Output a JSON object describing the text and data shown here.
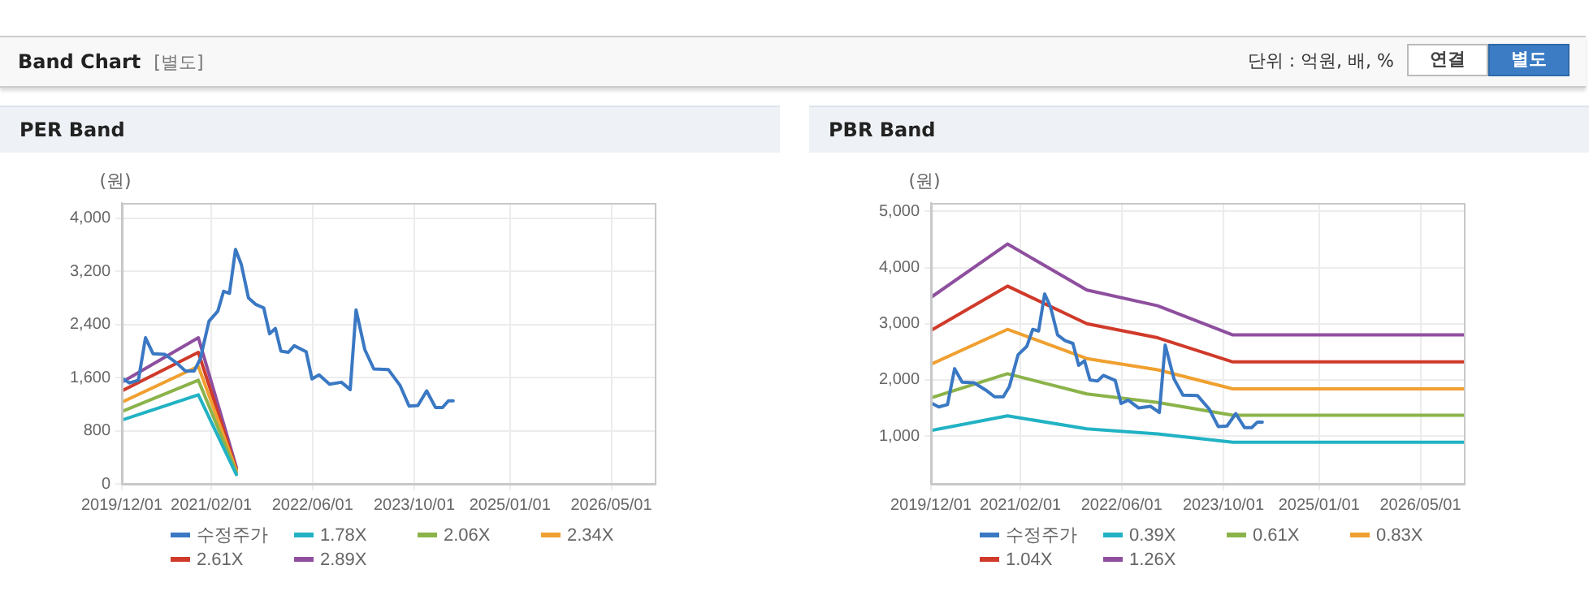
{
  "chart_data": [
    {
      "type": "other",
      "title": "Band Chart",
      "annotations": [
        "[별도]",
        "단위 : 억원, 배, %",
        "연결",
        "별도"
      ]
    },
    {
      "type": "line",
      "title": "PER Band",
      "ylabel": "(원)",
      "xlim": [
        "2019-12-01",
        "2026-11-25"
      ],
      "xticks": [
        {
          "value": "2019-12-01",
          "label": "2019/12/01"
        },
        {
          "value": "2021-02-01",
          "label": "2021/02/01"
        },
        {
          "value": "2022-06-01",
          "label": "2022/06/01"
        },
        {
          "value": "2023-10-01",
          "label": "2023/10/01"
        },
        {
          "value": "2025-01-01",
          "label": "2025/01/01"
        },
        {
          "value": "2026-05-01",
          "label": "2026/05/01"
        }
      ],
      "ylim": [
        0,
        4230
      ],
      "yticks": [
        0,
        800,
        {
          "value": 1600,
          "label": "1,600"
        },
        {
          "value": 2400,
          "label": "2,400"
        },
        {
          "value": 3200,
          "label": "3,200"
        },
        {
          "value": 4000,
          "label": "4,000"
        }
      ],
      "grid": true,
      "legend": "bottom",
      "marker": "none",
      "line_style": "solid",
      "series": [
        {
          "name": "수정주가",
          "color": "#3a78c3",
          "x": [
            "2019-12-01",
            "2020-01-07",
            "2020-02-18",
            "2020-03-23",
            "2020-04-28",
            "2020-06-24",
            "2020-08-19",
            "2020-09-30",
            "2020-11-11",
            "2020-12-10",
            "2021-01-21",
            "2021-03-04",
            "2021-04-01",
            "2021-04-29",
            "2021-05-28",
            "2021-06-25",
            "2021-07-29",
            "2021-09-03",
            "2021-10-10",
            "2021-11-07",
            "2021-12-05",
            "2021-12-31",
            "2022-02-05",
            "2022-03-05",
            "2022-05-01",
            "2022-05-29",
            "2022-07-02",
            "2022-08-21",
            "2022-10-17",
            "2022-11-28",
            "2022-12-26",
            "2023-02-06",
            "2023-03-21",
            "2023-05-30",
            "2023-07-25",
            "2023-09-06",
            "2023-10-18",
            "2023-11-29",
            "2024-01-10",
            "2024-02-13",
            "2024-03-12",
            "2024-04-04"
          ],
          "values": [
            1590,
            1520,
            1560,
            2200,
            1960,
            1950,
            1820,
            1700,
            1700,
            1880,
            2450,
            2600,
            2900,
            2870,
            3530,
            3300,
            2800,
            2700,
            2650,
            2260,
            2340,
            2000,
            1980,
            2080,
            1990,
            1580,
            1640,
            1500,
            1530,
            1420,
            2620,
            2020,
            1730,
            1720,
            1480,
            1170,
            1180,
            1400,
            1150,
            1150,
            1250,
            1250
          ]
        },
        {
          "name": "1.78X",
          "color": "#21b2c4",
          "x": [
            "2019-12-01",
            "2020-12-01",
            "2021-06-01"
          ],
          "values": [
            960,
            1340,
            140
          ]
        },
        {
          "name": "2.06X",
          "color": "#8bb34a",
          "x": [
            "2019-12-01",
            "2020-12-01",
            "2021-06-01"
          ],
          "values": [
            1090,
            1560,
            170
          ]
        },
        {
          "name": "2.34X",
          "color": "#f0a030",
          "x": [
            "2019-12-01",
            "2020-12-01",
            "2021-06-01"
          ],
          "values": [
            1230,
            1770,
            200
          ]
        },
        {
          "name": "2.61X",
          "color": "#d03a2a",
          "x": [
            "2019-12-01",
            "2020-12-01",
            "2021-06-01"
          ],
          "values": [
            1400,
            1980,
            220
          ]
        },
        {
          "name": "2.89X",
          "color": "#8e4f9e",
          "x": [
            "2019-12-01",
            "2020-12-01",
            "2021-06-01"
          ],
          "values": [
            1530,
            2200,
            250
          ]
        }
      ]
    },
    {
      "type": "line",
      "title": "PBR Band",
      "ylabel": "(원)",
      "xlim": [
        "2019-12-01",
        "2026-11-25"
      ],
      "xticks": [
        {
          "value": "2019-12-01",
          "label": "2019/12/01"
        },
        {
          "value": "2021-02-01",
          "label": "2021/02/01"
        },
        {
          "value": "2022-06-01",
          "label": "2022/06/01"
        },
        {
          "value": "2023-10-01",
          "label": "2023/10/01"
        },
        {
          "value": "2025-01-01",
          "label": "2025/01/01"
        },
        {
          "value": "2026-05-01",
          "label": "2026/05/01"
        }
      ],
      "ylim": [
        150,
        5150
      ],
      "yticks": [
        {
          "value": 1000,
          "label": "1,000"
        },
        {
          "value": 2000,
          "label": "2,000"
        },
        {
          "value": 3000,
          "label": "3,000"
        },
        {
          "value": 4000,
          "label": "4,000"
        },
        {
          "value": 5000,
          "label": "5,000"
        }
      ],
      "grid": true,
      "legend": "bottom",
      "marker": "none",
      "line_style": "solid",
      "series": [
        {
          "name": "수정주가",
          "color": "#3a78c3",
          "x": [
            "2019-12-01",
            "2020-01-07",
            "2020-02-18",
            "2020-03-23",
            "2020-04-28",
            "2020-06-24",
            "2020-08-19",
            "2020-09-30",
            "2020-11-11",
            "2020-12-10",
            "2021-01-21",
            "2021-03-04",
            "2021-04-01",
            "2021-04-29",
            "2021-05-28",
            "2021-06-25",
            "2021-07-29",
            "2021-09-03",
            "2021-10-10",
            "2021-11-07",
            "2021-12-05",
            "2021-12-31",
            "2022-02-05",
            "2022-03-05",
            "2022-05-01",
            "2022-05-29",
            "2022-07-02",
            "2022-08-21",
            "2022-10-17",
            "2022-11-28",
            "2022-12-26",
            "2023-02-06",
            "2023-03-21",
            "2023-05-30",
            "2023-07-25",
            "2023-09-06",
            "2023-10-18",
            "2023-11-29",
            "2024-01-10",
            "2024-02-13",
            "2024-03-12",
            "2024-04-04"
          ],
          "values": [
            1590,
            1520,
            1560,
            2200,
            1960,
            1950,
            1820,
            1700,
            1700,
            1880,
            2450,
            2600,
            2900,
            2870,
            3530,
            3300,
            2800,
            2700,
            2650,
            2260,
            2340,
            2000,
            1980,
            2080,
            1990,
            1580,
            1640,
            1500,
            1530,
            1420,
            2620,
            2020,
            1730,
            1720,
            1480,
            1170,
            1180,
            1400,
            1150,
            1150,
            1250,
            1250
          ]
        },
        {
          "name": "0.39X",
          "color": "#21b2c4",
          "x": [
            "2019-12-01",
            "2020-12-01",
            "2021-12-16",
            "2022-11-20",
            "2023-11-15",
            "2026-11-25"
          ],
          "values": [
            1100,
            1360,
            1130,
            1040,
            890,
            890
          ]
        },
        {
          "name": "0.61X",
          "color": "#8bb34a",
          "x": [
            "2019-12-01",
            "2020-12-01",
            "2021-12-16",
            "2022-11-20",
            "2023-11-15",
            "2026-11-25"
          ],
          "values": [
            1680,
            2110,
            1750,
            1600,
            1370,
            1370
          ]
        },
        {
          "name": "0.83X",
          "color": "#f0a030",
          "x": [
            "2019-12-01",
            "2020-12-01",
            "2021-12-16",
            "2022-11-20",
            "2023-11-15",
            "2026-11-25"
          ],
          "values": [
            2280,
            2900,
            2380,
            2180,
            1840,
            1840
          ]
        },
        {
          "name": "1.04X",
          "color": "#d03a2a",
          "x": [
            "2019-12-01",
            "2020-12-01",
            "2021-12-16",
            "2022-11-20",
            "2023-11-15",
            "2026-11-25"
          ],
          "values": [
            2880,
            3670,
            3000,
            2750,
            2320,
            2320
          ]
        },
        {
          "name": "1.26X",
          "color": "#8e4f9e",
          "x": [
            "2019-12-01",
            "2020-12-01",
            "2021-12-16",
            "2022-11-20",
            "2023-11-15",
            "2026-11-25"
          ],
          "values": [
            3470,
            4420,
            3600,
            3320,
            2800,
            2800
          ]
        }
      ]
    }
  ]
}
